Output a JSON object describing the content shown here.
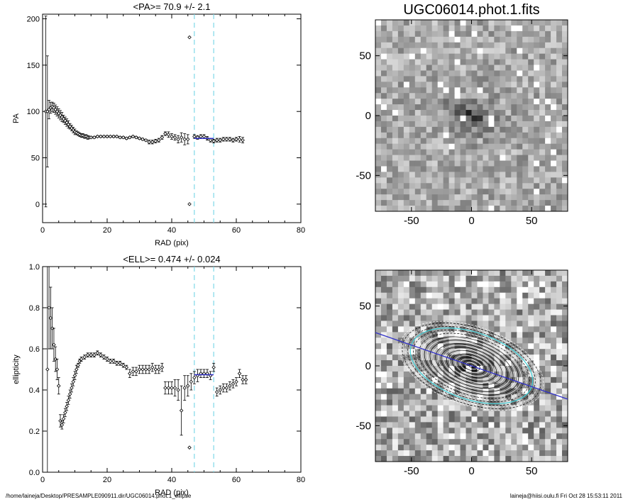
{
  "chart_data": [
    {
      "type": "scatter",
      "title": "<PA>=  70.9 +/-   2.1",
      "xlabel": "RAD (pix)",
      "ylabel": "PA",
      "xlim": [
        0,
        80
      ],
      "ylim": [
        -20,
        205
      ],
      "xticks": [
        0,
        20,
        40,
        60,
        80
      ],
      "yticks": [
        0,
        50,
        100,
        150,
        200
      ],
      "vlines": [
        47,
        53
      ],
      "mean_line": {
        "x": [
          47,
          53
        ],
        "y": 70.9
      },
      "series": [
        {
          "points": [
            [
              1.0,
              100,
              103
            ],
            [
              1.5,
              100,
              60
            ],
            [
              2,
              102,
              10
            ],
            [
              2.5,
              104,
              6
            ],
            [
              3,
              105,
              5
            ],
            [
              3.5,
              104,
              5
            ],
            [
              4,
              102,
              5
            ],
            [
              4.5,
              100,
              5
            ],
            [
              5,
              98,
              5
            ],
            [
              5.5,
              96,
              5
            ],
            [
              6,
              94,
              5
            ],
            [
              6.5,
              92,
              4
            ],
            [
              7,
              90,
              4
            ],
            [
              7.5,
              88,
              4
            ],
            [
              8,
              86,
              4
            ],
            [
              8.5,
              84,
              3
            ],
            [
              9,
              82,
              3
            ],
            [
              9.5,
              80,
              3
            ],
            [
              10,
              78,
              3
            ],
            [
              10.5,
              77,
              2
            ],
            [
              11,
              76,
              2
            ],
            [
              11.5,
              75,
              2
            ],
            [
              12,
              74,
              2
            ],
            [
              12.5,
              74,
              2
            ],
            [
              13,
              73,
              2
            ],
            [
              13.5,
              73,
              2
            ],
            [
              14,
              72,
              2
            ],
            [
              14.5,
              72,
              1
            ],
            [
              15,
              72,
              1
            ],
            [
              16,
              72,
              1
            ],
            [
              17,
              73,
              1
            ],
            [
              18,
              73,
              1
            ],
            [
              19,
              73,
              1
            ],
            [
              20,
              73,
              1
            ],
            [
              21,
              73,
              1
            ],
            [
              22,
              73,
              1
            ],
            [
              23,
              73,
              1
            ],
            [
              24,
              72,
              1
            ],
            [
              25,
              72,
              1
            ],
            [
              26,
              71,
              1
            ],
            [
              27,
              72,
              1
            ],
            [
              28,
              73,
              1
            ],
            [
              29,
              72,
              1
            ],
            [
              30,
              71,
              1
            ],
            [
              31,
              70,
              1
            ],
            [
              32,
              69,
              1
            ],
            [
              33,
              67,
              2
            ],
            [
              34,
              67,
              2
            ],
            [
              35,
              68,
              2
            ],
            [
              36,
              69,
              2
            ],
            [
              37,
              72,
              2
            ],
            [
              38,
              76,
              2
            ],
            [
              39,
              75,
              3
            ],
            [
              40,
              73,
              3
            ],
            [
              41,
              72,
              3
            ],
            [
              42,
              70,
              4
            ],
            [
              43,
              72,
              5
            ],
            [
              44,
              70,
              6
            ],
            [
              45,
              70,
              5
            ],
            [
              45.5,
              180,
              0
            ],
            [
              45.5,
              0,
              0
            ],
            [
              47,
              73,
              2
            ],
            [
              48,
              72,
              2
            ],
            [
              49,
              73,
              2
            ],
            [
              50,
              73,
              2
            ],
            [
              51,
              71,
              2
            ],
            [
              52,
              69,
              2
            ],
            [
              53,
              68,
              2
            ],
            [
              54,
              69,
              2
            ],
            [
              55,
              69,
              2
            ],
            [
              56,
              70,
              2
            ],
            [
              57,
              70,
              2
            ],
            [
              58,
              70,
              2
            ],
            [
              59,
              69,
              2
            ],
            [
              60,
              70,
              2
            ],
            [
              61,
              70,
              3
            ],
            [
              62,
              69,
              3
            ]
          ]
        }
      ],
      "colors": {
        "vline": "#7fd8e8",
        "mean": "#3030c8"
      }
    },
    {
      "type": "scatter",
      "title": "<ELL>= 0.474 +/-  0.024",
      "xlabel": "RAD (pix)",
      "ylabel": "ellipticity",
      "xlim": [
        0,
        80
      ],
      "ylim": [
        0,
        1
      ],
      "xticks": [
        0,
        20,
        40,
        60,
        80
      ],
      "yticks": [
        0.0,
        0.2,
        0.4,
        0.6,
        0.8,
        1.0
      ],
      "vlines": [
        47,
        53
      ],
      "mean_line": {
        "x": [
          47,
          53
        ],
        "y": 0.474
      },
      "series": [
        {
          "points": [
            [
              1.5,
              0.5,
              0.5
            ],
            [
              2,
              0.8,
              0.2
            ],
            [
              2.5,
              0.75,
              0.15
            ],
            [
              3,
              0.7,
              0.1
            ],
            [
              3.5,
              0.62,
              0.08
            ],
            [
              4,
              0.55,
              0.06
            ],
            [
              4.5,
              0.5,
              0.05
            ],
            [
              5,
              0.42,
              0.04
            ],
            [
              5.5,
              0.25,
              0.03
            ],
            [
              6,
              0.23,
              0.02
            ],
            [
              6.5,
              0.26,
              0.02
            ],
            [
              7,
              0.29,
              0.02
            ],
            [
              7.5,
              0.32,
              0.02
            ],
            [
              8,
              0.35,
              0.02
            ],
            [
              8.5,
              0.38,
              0.02
            ],
            [
              9,
              0.41,
              0.02
            ],
            [
              9.5,
              0.44,
              0.02
            ],
            [
              10,
              0.47,
              0.02
            ],
            [
              10.5,
              0.5,
              0.02
            ],
            [
              11,
              0.52,
              0.01
            ],
            [
              11.5,
              0.54,
              0.01
            ],
            [
              12,
              0.55,
              0.01
            ],
            [
              13,
              0.56,
              0.01
            ],
            [
              14,
              0.57,
              0.01
            ],
            [
              15,
              0.57,
              0.01
            ],
            [
              16,
              0.57,
              0.01
            ],
            [
              17,
              0.58,
              0.01
            ],
            [
              18,
              0.57,
              0.01
            ],
            [
              19,
              0.56,
              0.01
            ],
            [
              20,
              0.55,
              0.01
            ],
            [
              21,
              0.54,
              0.01
            ],
            [
              22,
              0.54,
              0.01
            ],
            [
              23,
              0.53,
              0.01
            ],
            [
              24,
              0.53,
              0.01
            ],
            [
              25,
              0.52,
              0.01
            ],
            [
              26,
              0.51,
              0.01
            ],
            [
              27,
              0.48,
              0.02
            ],
            [
              28,
              0.49,
              0.02
            ],
            [
              29,
              0.49,
              0.02
            ],
            [
              30,
              0.5,
              0.02
            ],
            [
              31,
              0.5,
              0.02
            ],
            [
              32,
              0.5,
              0.02
            ],
            [
              33,
              0.5,
              0.02
            ],
            [
              34,
              0.51,
              0.02
            ],
            [
              35,
              0.5,
              0.02
            ],
            [
              36,
              0.5,
              0.02
            ],
            [
              37,
              0.51,
              0.02
            ],
            [
              38,
              0.41,
              0.03
            ],
            [
              39,
              0.41,
              0.03
            ],
            [
              40,
              0.41,
              0.03
            ],
            [
              41,
              0.41,
              0.04
            ],
            [
              42,
              0.4,
              0.05
            ],
            [
              43,
              0.3,
              0.12
            ],
            [
              44,
              0.41,
              0.06
            ],
            [
              45,
              0.42,
              0.05
            ],
            [
              45.5,
              0.12,
              0.0
            ],
            [
              46,
              0.44,
              0.04
            ],
            [
              47,
              0.46,
              0.03
            ],
            [
              48,
              0.47,
              0.03
            ],
            [
              49,
              0.48,
              0.02
            ],
            [
              50,
              0.48,
              0.02
            ],
            [
              51,
              0.48,
              0.02
            ],
            [
              52,
              0.47,
              0.02
            ],
            [
              53,
              0.51,
              0.02
            ],
            [
              54,
              0.39,
              0.02
            ],
            [
              55,
              0.4,
              0.02
            ],
            [
              56,
              0.41,
              0.02
            ],
            [
              57,
              0.41,
              0.02
            ],
            [
              58,
              0.42,
              0.02
            ],
            [
              59,
              0.43,
              0.02
            ],
            [
              60,
              0.44,
              0.02
            ],
            [
              61,
              0.48,
              0.02
            ],
            [
              62,
              0.45,
              0.02
            ],
            [
              63,
              0.45,
              0.02
            ]
          ]
        }
      ],
      "colors": {
        "vline": "#7fd8e8",
        "mean": "#3030c8"
      }
    },
    {
      "type": "heatmap",
      "title": "UGC06014.phot.1.fits",
      "xlim": [
        -80,
        80
      ],
      "ylim": [
        -80,
        80
      ],
      "xticks": [
        -50,
        0,
        50
      ],
      "yticks": [
        -50,
        0,
        50
      ]
    },
    {
      "type": "heatmap",
      "title": "",
      "xlim": [
        -80,
        80
      ],
      "ylim": [
        -80,
        80
      ],
      "xticks": [
        -50,
        0,
        50
      ],
      "yticks": [
        -50,
        0,
        50
      ],
      "major_axis_pa_deg": 70.9,
      "mean_ellipticity": 0.474,
      "colors": {
        "contour": "#ffffff",
        "fit_ellipse": "#40d0d8",
        "axis_line": "#3030c8"
      }
    }
  ],
  "footer": {
    "left": "/home/laineja/Desktop/PRESAMPLE090911.dir/UGC06014.phot.1_ellipse",
    "right": "laineja@hiisi.oulu.fi  Fri Oct 28 15:53:11 2011"
  }
}
